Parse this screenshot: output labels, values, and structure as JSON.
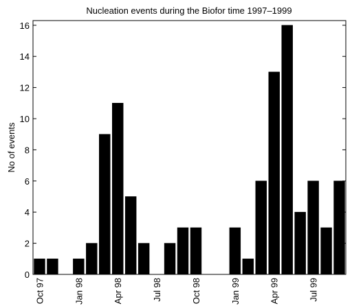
{
  "chart_data": {
    "type": "bar",
    "title": "Nucleation events during the Biofor time 1997–1999",
    "y_label": "No of events",
    "categories": [
      "Oct 97",
      null,
      null,
      "Jan 98",
      null,
      null,
      "Apr 98",
      null,
      null,
      "Jul 98",
      null,
      null,
      "Oct 98",
      null,
      null,
      "Jan 99",
      null,
      null,
      "Apr 99",
      null,
      null,
      "Jul 99",
      null,
      null
    ],
    "values": [
      1,
      1,
      0,
      1,
      2,
      9,
      11,
      5,
      2,
      0,
      2,
      3,
      3,
      0,
      0,
      3,
      1,
      6,
      13,
      16,
      4,
      6,
      3,
      6
    ],
    "color": "#000000",
    "ylim": [
      0,
      16.3
    ],
    "yticks": [
      0,
      2,
      4,
      6,
      8,
      10,
      12,
      14,
      16
    ]
  }
}
